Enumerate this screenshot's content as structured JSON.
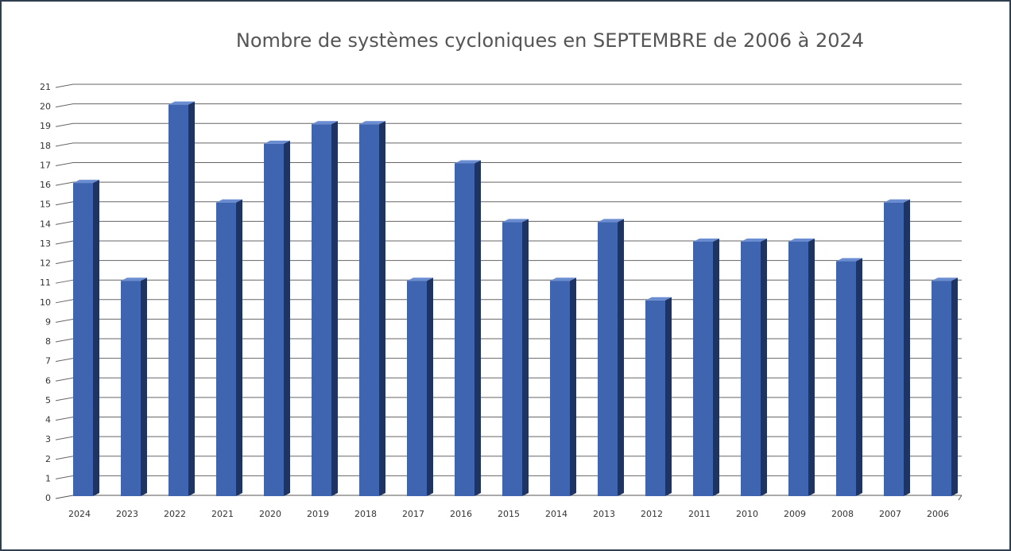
{
  "chart_data": {
    "type": "bar3d",
    "title": "Nombre de systèmes cycloniques en SEPTEMBRE de 2006 à 2024",
    "categories": [
      "2024",
      "2023",
      "2022",
      "2021",
      "2020",
      "2019",
      "2018",
      "2017",
      "2016",
      "2015",
      "2014",
      "2013",
      "2012",
      "2011",
      "2010",
      "2009",
      "2008",
      "2007",
      "2006"
    ],
    "values": [
      16,
      11,
      20,
      15,
      18,
      19,
      19,
      11,
      17,
      14,
      11,
      14,
      10,
      13,
      13,
      13,
      12,
      15,
      11
    ],
    "color": "#3f65b0",
    "ylim": [
      0,
      21
    ],
    "yticks": [
      0,
      1,
      2,
      3,
      4,
      5,
      6,
      7,
      8,
      9,
      10,
      11,
      12,
      13,
      14,
      15,
      16,
      17,
      18,
      19,
      20,
      21
    ],
    "grid": true
  }
}
